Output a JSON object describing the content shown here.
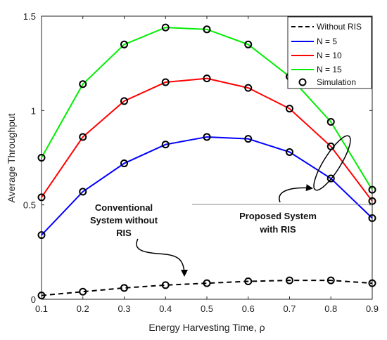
{
  "chart_data": {
    "type": "line",
    "title": "",
    "xlabel": "Energy Harvesting Time, ρ",
    "ylabel": "Average Throughput",
    "xlim": [
      0.1,
      0.9
    ],
    "ylim": [
      0,
      1.5
    ],
    "xticks": [
      0.1,
      0.2,
      0.3,
      0.4,
      0.5,
      0.6,
      0.7,
      0.8,
      0.9
    ],
    "xtick_labels": [
      "0.1",
      "0.2",
      "0.3",
      "0.4",
      "0.5",
      "0.6",
      "0.7",
      "0.8",
      "0.9"
    ],
    "yticks": [
      0,
      0.5,
      1,
      1.5
    ],
    "ytick_labels": [
      "0",
      "0.5",
      "1",
      "1.5"
    ],
    "grid": false,
    "legend_position": "top-right",
    "x": [
      0.1,
      0.2,
      0.3,
      0.4,
      0.5,
      0.6,
      0.7,
      0.8,
      0.9
    ],
    "series": [
      {
        "name": "Without RIS",
        "color": "#000000",
        "dash": "dashed",
        "values": [
          0.02,
          0.04,
          0.06,
          0.075,
          0.085,
          0.095,
          0.1,
          0.1,
          0.085
        ]
      },
      {
        "name": "N = 5",
        "color": "#0000ff",
        "dash": "solid",
        "values": [
          0.34,
          0.57,
          0.72,
          0.82,
          0.86,
          0.85,
          0.78,
          0.64,
          0.43
        ]
      },
      {
        "name": "N = 10",
        "color": "#ff0000",
        "dash": "solid",
        "values": [
          0.54,
          0.86,
          1.05,
          1.15,
          1.17,
          1.12,
          1.01,
          0.81,
          0.52
        ]
      },
      {
        "name": "N = 15",
        "color": "#00ee00",
        "dash": "solid",
        "values": [
          0.75,
          1.14,
          1.35,
          1.44,
          1.43,
          1.35,
          1.18,
          0.94,
          0.58
        ]
      }
    ],
    "simulation_legend": "Simulation",
    "annotations": [
      {
        "lines": [
          "Conventional",
          "System without",
          "RIS"
        ]
      },
      {
        "lines": [
          "Proposed System",
          "with RIS"
        ]
      }
    ]
  }
}
